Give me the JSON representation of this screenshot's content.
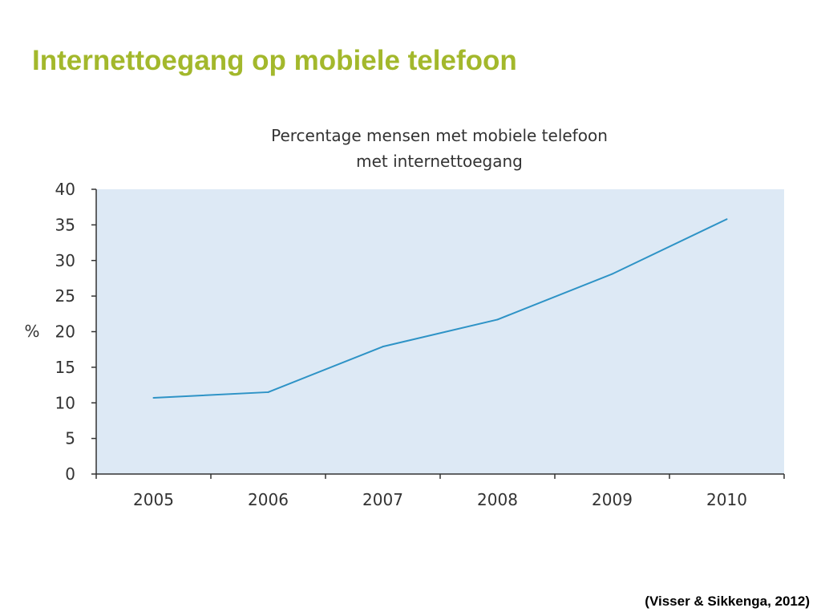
{
  "slide": {
    "title": "Internettoegang op mobiele telefoon",
    "source": "(Visser & Sikkenga, 2012)"
  },
  "colors": {
    "title": "#a3b82c",
    "plot_background": "#dde9f5",
    "line": "#2e93c6",
    "axis": "#333333"
  },
  "chart_data": {
    "type": "line",
    "title_lines": [
      "Percentage mensen met mobiele telefoon",
      "met internettoegang"
    ],
    "xlabel": "",
    "ylabel": "%",
    "categories": [
      "2005",
      "2006",
      "2007",
      "2008",
      "2009",
      "2010"
    ],
    "series": [
      {
        "values": [
          10.7,
          11.5,
          17.9,
          21.7,
          28.1,
          35.8
        ]
      }
    ],
    "ylim": [
      0,
      40
    ],
    "yticks": [
      0,
      5,
      10,
      15,
      20,
      25,
      30,
      35,
      40
    ],
    "grid": false,
    "legend": "none"
  }
}
